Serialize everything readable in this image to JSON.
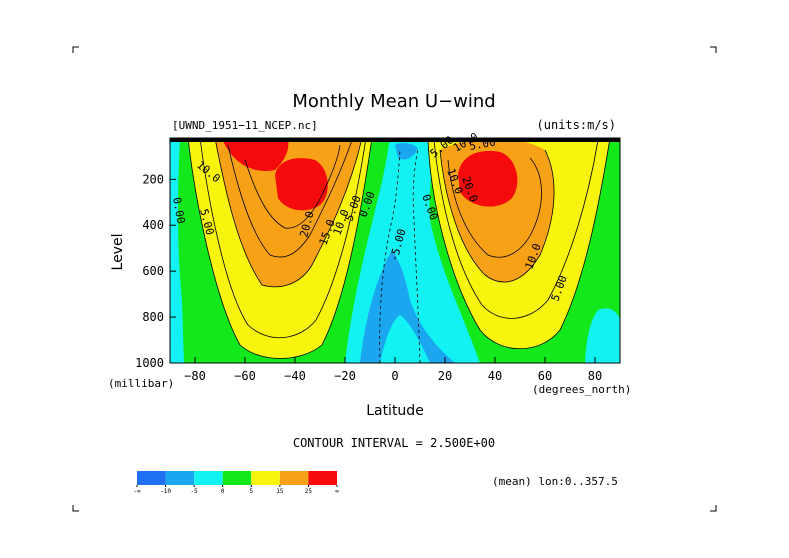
{
  "chart_data": {
    "type": "heatmap",
    "subtype": "filled-contour",
    "title": "Monthly Mean U−wind",
    "dataset_label": "[UWND_1951−11_NCEP.nc]",
    "units_label": "(units:m/s)",
    "xlabel": "Latitude",
    "xunits": "(degrees_north)",
    "ylabel": "Level",
    "yunits": "(millibar)",
    "x_ticks": [
      "−80",
      "−60",
      "−40",
      "−20",
      "0",
      "20",
      "40",
      "60",
      "80"
    ],
    "y_ticks": [
      "200",
      "400",
      "600",
      "800",
      "1000"
    ],
    "xlim": [
      -90,
      90
    ],
    "ylim": [
      1000,
      20
    ],
    "contour_interval_text": "CONTOUR INTERVAL = 2.500E+00",
    "footer_text": "(mean) lon:0..357.5",
    "colorbar": {
      "colors": [
        "#1f6ff2",
        "#1aa7f0",
        "#13f2f2",
        "#13e81a",
        "#f8f40e",
        "#f7a116",
        "#f50b0b"
      ],
      "labels": [
        "-∞",
        "-10",
        "-5",
        "0",
        "5",
        "15",
        "25",
        "∞"
      ]
    },
    "contour_labels": [
      "10.0",
      "5.00",
      "0.00",
      "20.0",
      "15.0",
      "10.0",
      "5.00",
      "0.00",
      "-5.00",
      "0.00",
      "5.00",
      "10.0",
      "5.00",
      "10.0",
      "20.0",
      "10.0",
      "5.00"
    ],
    "features": [
      {
        "name": "southern-jet",
        "lat": -35,
        "level": 200,
        "peak": 30
      },
      {
        "name": "northern-jet",
        "lat": 33,
        "level": 200,
        "peak": 30
      },
      {
        "name": "polar-upper-max",
        "lat": -65,
        "level": 50,
        "peak": 30
      },
      {
        "name": "tropical-easterlies",
        "lat": 0,
        "level": 700,
        "peak": -10
      }
    ]
  }
}
